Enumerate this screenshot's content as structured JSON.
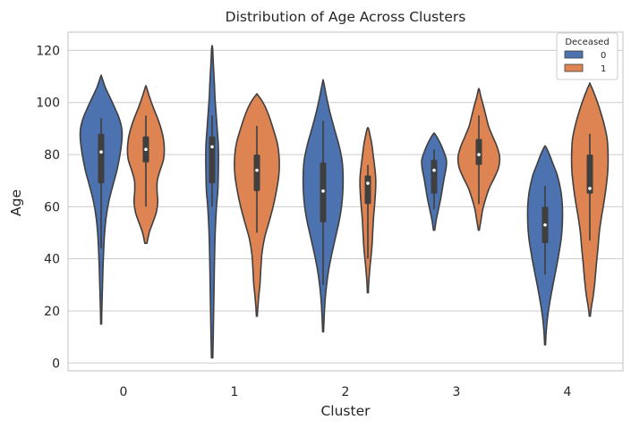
{
  "chart_data": {
    "type": "violin",
    "title": "Distribution of Age Across Clusters",
    "xlabel": "Cluster",
    "ylabel": "Age",
    "categories": [
      "0",
      "1",
      "2",
      "3",
      "4"
    ],
    "ylim": [
      -3,
      127
    ],
    "yticks": [
      0,
      20,
      40,
      60,
      80,
      100,
      120
    ],
    "grid": true,
    "legend": {
      "title": "Deceased",
      "placement": "top-right",
      "entries": [
        "0",
        "1"
      ]
    },
    "series": [
      {
        "name": "0",
        "color": "#4c72b0",
        "violins": [
          {
            "cluster": "0",
            "range": [
              15,
              110
            ],
            "profile": [
              [
                15,
                0.2
              ],
              [
                20,
                0.3
              ],
              [
                26,
                0.5
              ],
              [
                32,
                0.7
              ],
              [
                38,
                0.9
              ],
              [
                44,
                1.2
              ],
              [
                50,
                1.6
              ],
              [
                56,
                2.3
              ],
              [
                62,
                3.5
              ],
              [
                68,
                5.3
              ],
              [
                74,
                7.2
              ],
              [
                80,
                8.6
              ],
              [
                86,
                9.5
              ],
              [
                90,
                9.4
              ],
              [
                94,
                8.2
              ],
              [
                98,
                6.2
              ],
              [
                102,
                4.0
              ],
              [
                106,
                1.8
              ],
              [
                110,
                0.2
              ]
            ],
            "q1": 69,
            "median": 81,
            "q3": 88,
            "whisker": [
              44,
              94
            ]
          },
          {
            "cluster": "1",
            "range": [
              2,
              121
            ],
            "profile": [
              [
                2,
                0.3
              ],
              [
                10,
                0.5
              ],
              [
                20,
                0.7
              ],
              [
                30,
                0.9
              ],
              [
                40,
                1.1
              ],
              [
                50,
                1.4
              ],
              [
                60,
                2.0
              ],
              [
                66,
                2.6
              ],
              [
                72,
                2.8
              ],
              [
                78,
                2.9
              ],
              [
                84,
                2.8
              ],
              [
                90,
                2.3
              ],
              [
                96,
                1.8
              ],
              [
                102,
                1.3
              ],
              [
                108,
                1.0
              ],
              [
                114,
                0.6
              ],
              [
                121,
                0.2
              ]
            ],
            "q1": 69,
            "median": 83,
            "q3": 87,
            "whisker": [
              60,
              95
            ]
          },
          {
            "cluster": "2",
            "range": [
              12,
              108
            ],
            "profile": [
              [
                12,
                0.2
              ],
              [
                18,
                0.5
              ],
              [
                24,
                0.9
              ],
              [
                30,
                1.6
              ],
              [
                36,
                2.6
              ],
              [
                42,
                4.0
              ],
              [
                48,
                5.6
              ],
              [
                54,
                7.2
              ],
              [
                60,
                8.4
              ],
              [
                66,
                9.0
              ],
              [
                72,
                9.1
              ],
              [
                78,
                8.6
              ],
              [
                84,
                7.1
              ],
              [
                90,
                5.1
              ],
              [
                96,
                3.2
              ],
              [
                102,
                1.6
              ],
              [
                108,
                0.2
              ]
            ],
            "q1": 54,
            "median": 66,
            "q3": 77,
            "whisker": [
              30,
              93
            ]
          },
          {
            "cluster": "3",
            "range": [
              51,
              88
            ],
            "profile": [
              [
                51,
                0.3
              ],
              [
                55,
                1.0
              ],
              [
                59,
                2.0
              ],
              [
                63,
                3.0
              ],
              [
                67,
                3.8
              ],
              [
                71,
                4.6
              ],
              [
                75,
                5.5
              ],
              [
                78,
                5.6
              ],
              [
                81,
                4.5
              ],
              [
                84,
                3.0
              ],
              [
                86,
                1.8
              ],
              [
                88,
                0.3
              ]
            ],
            "q1": 65,
            "median": 74,
            "q3": 78,
            "whisker": [
              59,
              82
            ]
          },
          {
            "cluster": "4",
            "range": [
              7,
              83
            ],
            "profile": [
              [
                7,
                0.2
              ],
              [
                12,
                0.5
              ],
              [
                18,
                1.2
              ],
              [
                24,
                2.3
              ],
              [
                30,
                3.6
              ],
              [
                36,
                5.0
              ],
              [
                42,
                6.3
              ],
              [
                48,
                7.4
              ],
              [
                54,
                7.9
              ],
              [
                60,
                7.9
              ],
              [
                66,
                7.2
              ],
              [
                72,
                5.6
              ],
              [
                76,
                3.8
              ],
              [
                80,
                2.0
              ],
              [
                83,
                0.3
              ]
            ],
            "q1": 46,
            "median": 53,
            "q3": 60,
            "whisker": [
              34,
              68
            ]
          }
        ]
      },
      {
        "name": "1",
        "color": "#dd8452",
        "violins": [
          {
            "cluster": "0",
            "range": [
              46,
              106
            ],
            "profile": [
              [
                46,
                0.5
              ],
              [
                50,
                1.5
              ],
              [
                54,
                3.2
              ],
              [
                58,
                4.8
              ],
              [
                62,
                5.4
              ],
              [
                66,
                5.1
              ],
              [
                70,
                5.2
              ],
              [
                74,
                6.5
              ],
              [
                78,
                8.0
              ],
              [
                82,
                8.4
              ],
              [
                86,
                8.0
              ],
              [
                90,
                6.9
              ],
              [
                94,
                5.3
              ],
              [
                98,
                3.4
              ],
              [
                102,
                1.7
              ],
              [
                106,
                0.2
              ]
            ],
            "q1": 77,
            "median": 82,
            "q3": 87,
            "whisker": [
              60,
              95
            ]
          },
          {
            "cluster": "1",
            "range": [
              18,
              103
            ],
            "profile": [
              [
                18,
                0.2
              ],
              [
                22,
                0.5
              ],
              [
                26,
                0.9
              ],
              [
                30,
                1.4
              ],
              [
                36,
                1.8
              ],
              [
                42,
                2.3
              ],
              [
                48,
                3.5
              ],
              [
                54,
                5.5
              ],
              [
                60,
                7.4
              ],
              [
                66,
                8.9
              ],
              [
                72,
                10.0
              ],
              [
                78,
                10.2
              ],
              [
                84,
                9.4
              ],
              [
                90,
                7.4
              ],
              [
                96,
                5.0
              ],
              [
                100,
                2.8
              ],
              [
                103,
                0.3
              ]
            ],
            "q1": 66,
            "median": 74,
            "q3": 80,
            "whisker": [
              50,
              91
            ]
          },
          {
            "cluster": "2",
            "range": [
              27,
              90
            ],
            "profile": [
              [
                27,
                0.2
              ],
              [
                32,
                0.5
              ],
              [
                38,
                1.1
              ],
              [
                44,
                1.8
              ],
              [
                50,
                2.2
              ],
              [
                56,
                2.6
              ],
              [
                62,
                3.2
              ],
              [
                68,
                3.6
              ],
              [
                72,
                3.5
              ],
              [
                76,
                3.0
              ],
              [
                80,
                2.4
              ],
              [
                84,
                1.8
              ],
              [
                87,
                1.1
              ],
              [
                90,
                0.3
              ]
            ],
            "q1": 61,
            "median": 69,
            "q3": 72,
            "whisker": [
              40,
              76
            ]
          },
          {
            "cluster": "3",
            "range": [
              51,
              105
            ],
            "profile": [
              [
                51,
                0.2
              ],
              [
                55,
                1.0
              ],
              [
                59,
                1.8
              ],
              [
                63,
                3.1
              ],
              [
                67,
                4.7
              ],
              [
                71,
                7.0
              ],
              [
                75,
                9.0
              ],
              [
                79,
                9.5
              ],
              [
                83,
                8.3
              ],
              [
                87,
                6.3
              ],
              [
                91,
                4.4
              ],
              [
                95,
                3.2
              ],
              [
                99,
                2.0
              ],
              [
                102,
                1.0
              ],
              [
                105,
                0.2
              ]
            ],
            "q1": 76,
            "median": 80,
            "q3": 86,
            "whisker": [
              61,
              95
            ]
          },
          {
            "cluster": "4",
            "range": [
              18,
              107
            ],
            "profile": [
              [
                18,
                0.2
              ],
              [
                22,
                0.8
              ],
              [
                26,
                1.6
              ],
              [
                32,
                2.4
              ],
              [
                38,
                3.0
              ],
              [
                44,
                3.7
              ],
              [
                50,
                4.3
              ],
              [
                56,
                5.3
              ],
              [
                62,
                6.5
              ],
              [
                68,
                7.5
              ],
              [
                74,
                8.2
              ],
              [
                80,
                8.3
              ],
              [
                86,
                7.9
              ],
              [
                92,
                6.4
              ],
              [
                98,
                4.3
              ],
              [
                103,
                2.2
              ],
              [
                107,
                0.2
              ]
            ],
            "q1": 65,
            "median": 67,
            "q3": 80,
            "whisker": [
              47,
              88
            ]
          }
        ]
      }
    ]
  }
}
